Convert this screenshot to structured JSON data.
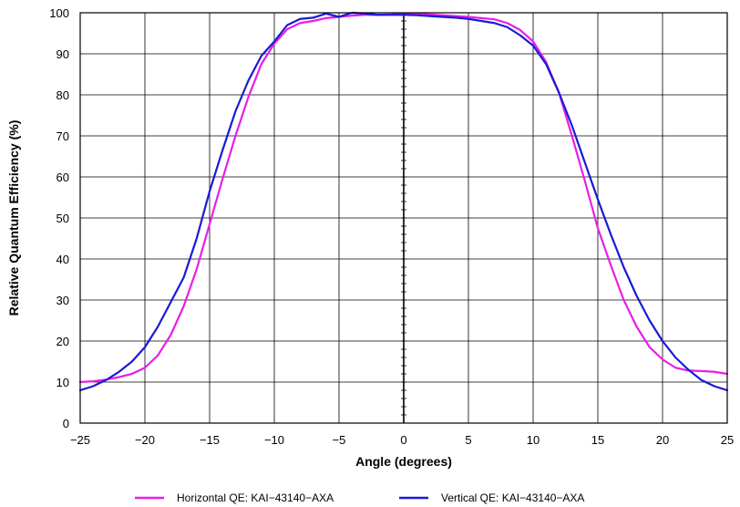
{
  "chart_data": {
    "type": "line",
    "title": "",
    "xlabel": "Angle (degrees)",
    "ylabel": "Relative Quantum Efficiency (%)",
    "xlim": [
      -25,
      25
    ],
    "ylim": [
      0,
      100
    ],
    "xticks": [
      -25,
      -20,
      -15,
      -10,
      -5,
      0,
      5,
      10,
      15,
      20,
      25
    ],
    "yticks": [
      0,
      10,
      20,
      30,
      40,
      50,
      60,
      70,
      80,
      90,
      100
    ],
    "x_tick_labels": [
      "−25",
      "−20",
      "−15",
      "−10",
      "−5",
      "0",
      "5",
      "10",
      "15",
      "20",
      "25"
    ],
    "y_tick_labels": [
      "0",
      "10",
      "20",
      "30",
      "40",
      "50",
      "60",
      "70",
      "80",
      "90",
      "100"
    ],
    "grid": true,
    "legend_position": "bottom",
    "series": [
      {
        "name": "Horizontal QE: KAI−43140−AXA",
        "color": "#e81ee8",
        "x": [
          -25,
          -24,
          -23,
          -22,
          -21,
          -20,
          -19,
          -18,
          -17,
          -16,
          -15,
          -14,
          -13,
          -12,
          -11,
          -10,
          -9,
          -8,
          -7,
          -6,
          -5,
          -4,
          -3,
          -2,
          -1,
          0,
          1,
          2,
          3,
          4,
          5,
          6,
          7,
          8,
          9,
          10,
          11,
          12,
          13,
          14,
          15,
          16,
          17,
          18,
          19,
          20,
          21,
          22,
          23,
          24,
          25
        ],
        "y": [
          10,
          10.2,
          10.6,
          11.2,
          12,
          13.5,
          16.5,
          21.5,
          28.5,
          37.5,
          48.5,
          59.5,
          70,
          79.5,
          87.5,
          92.5,
          96,
          97.5,
          98,
          98.7,
          99,
          99.3,
          99.5,
          99.5,
          99.6,
          99.8,
          99.8,
          99.6,
          99.4,
          99.2,
          99,
          98.7,
          98.4,
          97.5,
          95.8,
          93,
          88,
          80.5,
          70,
          59,
          47.5,
          38.5,
          30,
          23.5,
          18.5,
          15.5,
          13.5,
          12.8,
          12.7,
          12.5,
          12
        ]
      },
      {
        "name": "Vertical QE: KAI−43140−AXA",
        "color": "#1a1ad4",
        "x": [
          -25,
          -24,
          -23,
          -22,
          -21,
          -20,
          -19,
          -18,
          -17,
          -16,
          -15,
          -14,
          -13,
          -12,
          -11,
          -10,
          -9,
          -8,
          -7,
          -6,
          -5,
          -4,
          -3,
          -2,
          -1,
          0,
          1,
          2,
          3,
          4,
          5,
          6,
          7,
          8,
          9,
          10,
          11,
          12,
          13,
          14,
          15,
          16,
          17,
          18,
          19,
          20,
          21,
          22,
          23,
          24,
          25
        ],
        "y": [
          8,
          9,
          10.5,
          12.5,
          15,
          18.5,
          23.5,
          29.5,
          35.5,
          45,
          56.5,
          66.5,
          76,
          83.5,
          89.5,
          93,
          97,
          98.5,
          98.8,
          99.8,
          99,
          100,
          99.8,
          99.5,
          99.5,
          99.5,
          99.4,
          99.2,
          99,
          98.8,
          98.5,
          98,
          97.5,
          96.5,
          94.5,
          92,
          87.5,
          80.5,
          72.5,
          63.5,
          54.5,
          46,
          38,
          31,
          25,
          20,
          16,
          13,
          10.5,
          9,
          8
        ]
      }
    ]
  }
}
